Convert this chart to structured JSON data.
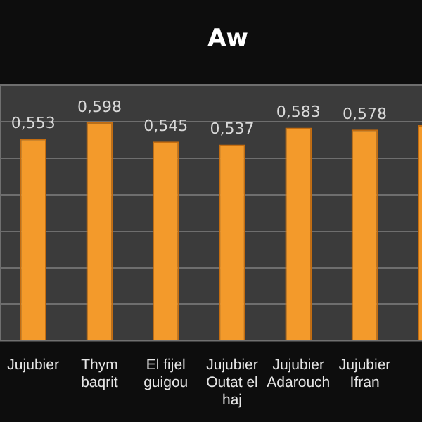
{
  "chart_data": {
    "type": "bar",
    "title": "Aw",
    "categories": [
      "Jujubier",
      "Thym baqrit",
      "El fijel guigou",
      "Jujubier Outat el haj",
      "Jujubier Adarouch",
      "Jujubier Ifran",
      null
    ],
    "values": [
      0.553,
      0.598,
      0.545,
      0.537,
      0.583,
      0.578,
      0.59
    ],
    "value_labels": [
      "0,553",
      "0,598",
      "0,545",
      "0,537",
      "0,583",
      "0,578",
      null
    ],
    "color": "#f39a2b",
    "ylim": [
      0,
      0.7
    ],
    "yticks": [
      {
        "value": 0,
        "label": null
      },
      {
        "value": 0.1,
        "label": null
      },
      {
        "value": 0.2,
        "label": null
      },
      {
        "value": 0.3,
        "label": null
      },
      {
        "value": 0.4,
        "label": null
      },
      {
        "value": 0.5,
        "label": null
      },
      {
        "value": 0.6,
        "label": null
      },
      {
        "value": 0.7,
        "label": null
      }
    ],
    "grid": "y",
    "tick_labels": "x",
    "legend": false
  }
}
